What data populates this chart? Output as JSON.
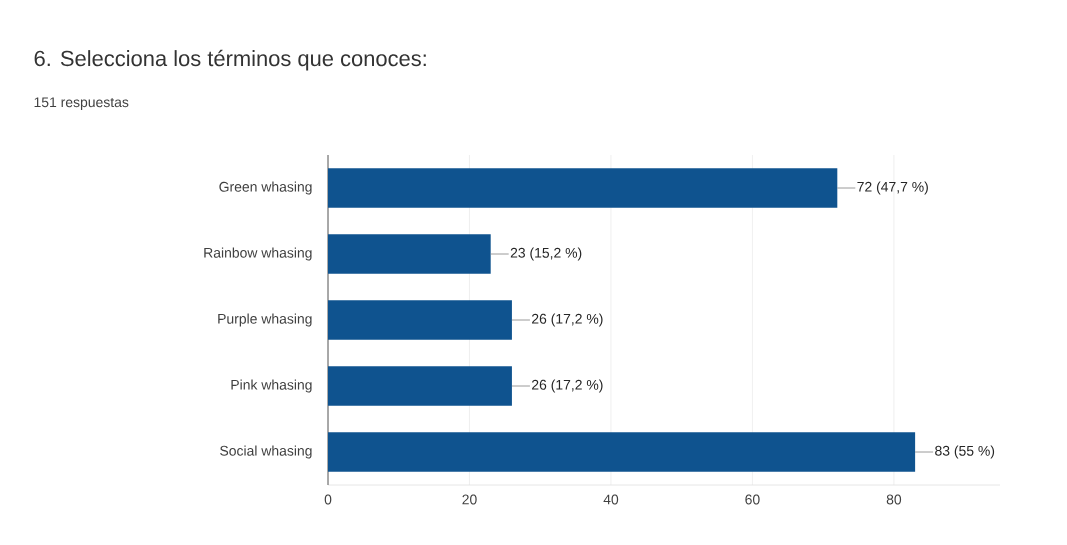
{
  "chart_data": {
    "type": "bar",
    "orientation": "horizontal",
    "title": "6. Selecciona los términos que conoces:",
    "subtitle": "151 respuestas",
    "categories": [
      "Green whasing",
      "Rainbow whasing",
      "Purple whasing",
      "Pink whasing",
      "Social whasing"
    ],
    "values": [
      72,
      23,
      26,
      26,
      83
    ],
    "value_labels": [
      "72 (47,7 %)",
      "23 (15,2 %)",
      "26 (17,2 %)",
      "26 (17,2 %)",
      "83 (55 %)"
    ],
    "color": "#0f538f",
    "xlim": [
      0,
      95
    ],
    "xticks": [
      0,
      20,
      40,
      60,
      80
    ],
    "grid": "x"
  }
}
